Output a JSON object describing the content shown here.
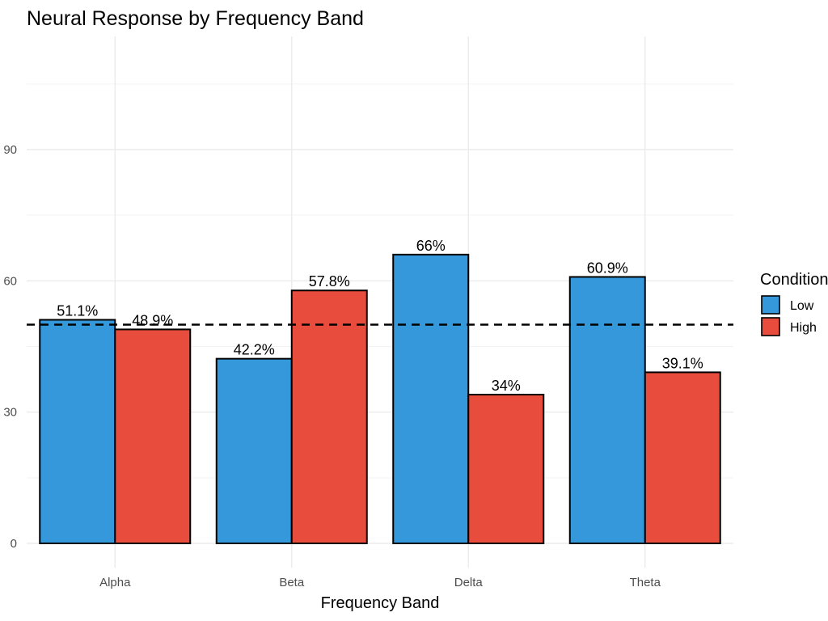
{
  "chart_data": {
    "type": "bar",
    "title": "Neural Response by Frequency Band",
    "xlabel": "Frequency Band",
    "ylabel": "",
    "categories": [
      "Alpha",
      "Beta",
      "Delta",
      "Theta"
    ],
    "series": [
      {
        "name": "Low",
        "color": "#3498db",
        "values": [
          51.1,
          42.2,
          66,
          60.9
        ],
        "labels": [
          "51.1%",
          "42.2%",
          "66%",
          "60.9%"
        ]
      },
      {
        "name": "High",
        "color": "#e74c3c",
        "values": [
          48.9,
          57.8,
          34,
          39.1
        ],
        "labels": [
          "48.9%",
          "57.8%",
          "34%",
          "39.1%"
        ]
      }
    ],
    "ylim": [
      0,
      110
    ],
    "yticks": [
      0,
      30,
      60,
      90
    ],
    "ytick_labels": [
      "0",
      "30",
      "60",
      "90"
    ],
    "reference_line": {
      "value": 50,
      "style": "dashed"
    },
    "legend": {
      "title": "Condition",
      "position": "right"
    },
    "grid": true
  }
}
